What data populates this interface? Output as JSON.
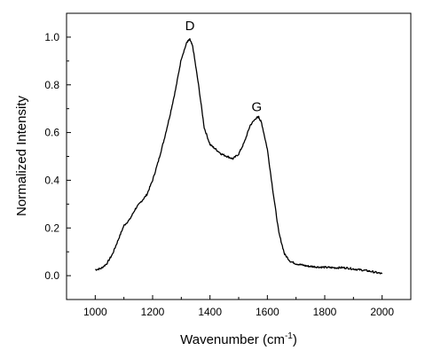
{
  "chart_data": {
    "type": "line",
    "title": "",
    "xlabel": "Wavenumber (cm",
    "xlabel_sup": "-1",
    "xlabel_close": ")",
    "ylabel": "Normalized Intensity",
    "xlim": [
      900,
      2100
    ],
    "ylim": [
      -0.1,
      1.1
    ],
    "xticks": [
      1000,
      1200,
      1400,
      1600,
      1800,
      2000
    ],
    "yticks": [
      0.0,
      0.2,
      0.4,
      0.6,
      0.8,
      1.0
    ],
    "ytick_labels": [
      "0.0",
      "0.2",
      "0.4",
      "0.6",
      "0.8",
      "1.0"
    ],
    "grid": false,
    "line_color": "#000000",
    "annotations": [
      {
        "text": "D",
        "x": 1330,
        "y": 1.03
      },
      {
        "text": "G",
        "x": 1563,
        "y": 0.69
      }
    ],
    "series": [
      {
        "x": [
          1000,
          1020,
          1040,
          1060,
          1080,
          1100,
          1120,
          1140,
          1160,
          1180,
          1200,
          1220,
          1240,
          1260,
          1280,
          1300,
          1320,
          1330,
          1340,
          1360,
          1380,
          1400,
          1420,
          1440,
          1460,
          1480,
          1500,
          1520,
          1540,
          1560,
          1570,
          1580,
          1600,
          1620,
          1640,
          1660,
          1680,
          1700,
          1720,
          1740,
          1760,
          1780,
          1800,
          1820,
          1840,
          1860,
          1880,
          1900,
          1920,
          1940,
          1960,
          1980,
          2000
        ],
        "y": [
          0.025,
          0.03,
          0.05,
          0.09,
          0.15,
          0.21,
          0.235,
          0.28,
          0.31,
          0.34,
          0.4,
          0.48,
          0.57,
          0.67,
          0.78,
          0.91,
          0.98,
          0.99,
          0.96,
          0.8,
          0.62,
          0.55,
          0.53,
          0.51,
          0.5,
          0.49,
          0.51,
          0.56,
          0.63,
          0.66,
          0.665,
          0.64,
          0.53,
          0.35,
          0.18,
          0.09,
          0.06,
          0.05,
          0.045,
          0.04,
          0.038,
          0.036,
          0.035,
          0.034,
          0.033,
          0.034,
          0.032,
          0.028,
          0.025,
          0.022,
          0.018,
          0.013,
          0.008
        ]
      }
    ]
  }
}
